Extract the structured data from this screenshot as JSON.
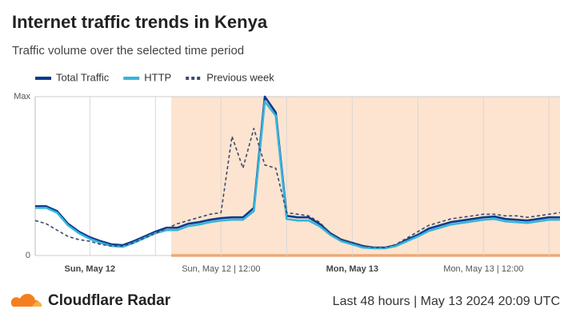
{
  "chart_data": {
    "type": "line",
    "title": "Internet traffic trends in Kenya",
    "subtitle": "Traffic volume over the selected time period",
    "categories": [
      null,
      null,
      null,
      null,
      null,
      "Sun, May 12",
      null,
      null,
      null,
      null,
      null,
      null,
      null,
      null,
      null,
      null,
      null,
      "Sun, May 12 | 12:00",
      null,
      null,
      null,
      null,
      null,
      null,
      null,
      null,
      null,
      null,
      null,
      "Mon, May 13",
      null,
      null,
      null,
      null,
      null,
      null,
      null,
      null,
      null,
      null,
      null,
      "Mon, May 13 | 12:00",
      null,
      null,
      null,
      null,
      null,
      null,
      null
    ],
    "series": [
      {
        "name": "Total Traffic",
        "color": "#0a3a8c",
        "dashed": false,
        "values": [
          0.31,
          0.31,
          0.28,
          0.2,
          0.15,
          0.115,
          0.09,
          0.07,
          0.065,
          0.09,
          0.12,
          0.15,
          0.175,
          0.175,
          0.2,
          0.21,
          0.225,
          0.235,
          0.24,
          0.24,
          0.3,
          1.0,
          0.9,
          0.25,
          0.24,
          0.24,
          0.2,
          0.14,
          0.1,
          0.08,
          0.06,
          0.05,
          0.05,
          0.065,
          0.1,
          0.13,
          0.17,
          0.19,
          0.21,
          0.22,
          0.23,
          0.24,
          0.245,
          0.23,
          0.225,
          0.22,
          0.23,
          0.24,
          0.24
        ]
      },
      {
        "name": "HTTP",
        "color": "#35b5dc",
        "dashed": false,
        "values": [
          0.3,
          0.3,
          0.27,
          0.19,
          0.14,
          0.105,
          0.08,
          0.06,
          0.055,
          0.08,
          0.11,
          0.14,
          0.16,
          0.16,
          0.185,
          0.195,
          0.21,
          0.22,
          0.225,
          0.225,
          0.28,
          0.97,
          0.88,
          0.23,
          0.22,
          0.22,
          0.185,
          0.13,
          0.09,
          0.07,
          0.05,
          0.045,
          0.045,
          0.06,
          0.09,
          0.12,
          0.155,
          0.175,
          0.195,
          0.205,
          0.215,
          0.225,
          0.23,
          0.215,
          0.21,
          0.205,
          0.215,
          0.225,
          0.225
        ]
      },
      {
        "name": "Previous week",
        "color": "#3b4a6e",
        "dashed": true,
        "values": [
          0.22,
          0.2,
          0.16,
          0.12,
          0.1,
          0.09,
          0.07,
          0.06,
          0.06,
          0.08,
          0.11,
          0.14,
          0.17,
          0.2,
          0.22,
          0.24,
          0.26,
          0.27,
          0.75,
          0.55,
          0.8,
          0.57,
          0.55,
          0.27,
          0.26,
          0.25,
          0.21,
          0.14,
          0.1,
          0.08,
          0.06,
          0.05,
          0.05,
          0.07,
          0.11,
          0.15,
          0.19,
          0.21,
          0.23,
          0.24,
          0.25,
          0.26,
          0.26,
          0.25,
          0.25,
          0.24,
          0.25,
          0.26,
          0.27
        ]
      }
    ],
    "ylim": [
      0,
      1
    ],
    "yticks": [
      0,
      {
        "value": 1,
        "label": "Max"
      }
    ],
    "grid": true,
    "brand": "Cloudflare Radar",
    "footer": "Last 48 hours | May 13 2024 20:09 UTC"
  }
}
